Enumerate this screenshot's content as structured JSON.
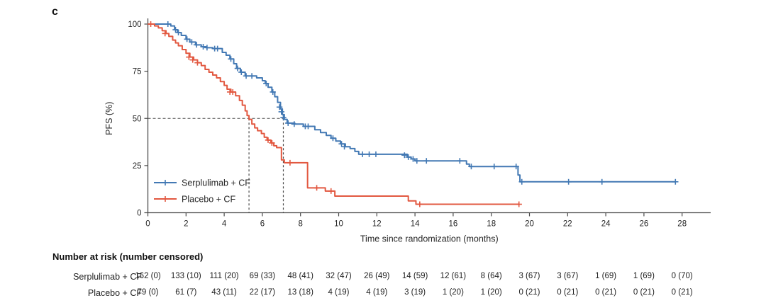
{
  "panel_label": "c",
  "colors": {
    "serplulimab": "#4379B4",
    "placebo": "#E25840",
    "axis": "#4a4a4a",
    "dashed": "#4d4d4d",
    "text": "#262626"
  },
  "chart_data": {
    "type": "line",
    "subtype": "kaplan-meier-step",
    "title": "",
    "xlabel": "Time since randomization (months)",
    "ylabel": "PFS (%)",
    "xlim": [
      0,
      29.5
    ],
    "ylim": [
      0,
      100
    ],
    "xticks": [
      0,
      2,
      4,
      6,
      8,
      10,
      12,
      14,
      16,
      18,
      20,
      22,
      24,
      26,
      28
    ],
    "yticks": [
      0,
      25,
      50,
      75,
      100
    ],
    "grid": false,
    "legend_position": "lower-left-inside",
    "reference_lines": {
      "horizontal_pfs_pct": 50,
      "vertical_median_months": [
        5.3,
        7.1
      ],
      "median_months_placebo": 5.3,
      "median_months_serplulimab": 7.1
    },
    "series": [
      {
        "name": "Serplulimab + CF",
        "color": "#4379B4",
        "steps": [
          [
            0,
            100
          ],
          [
            1.2,
            99
          ],
          [
            1.4,
            97
          ],
          [
            1.55,
            95.5
          ],
          [
            1.75,
            94
          ],
          [
            2.0,
            92
          ],
          [
            2.2,
            90.5
          ],
          [
            2.5,
            89
          ],
          [
            2.8,
            88
          ],
          [
            3.05,
            87.5
          ],
          [
            3.4,
            87
          ],
          [
            3.9,
            85
          ],
          [
            4.1,
            83.5
          ],
          [
            4.3,
            81.5
          ],
          [
            4.5,
            79
          ],
          [
            4.65,
            76.5
          ],
          [
            4.85,
            74.5
          ],
          [
            5.1,
            72.5
          ],
          [
            5.7,
            71.5
          ],
          [
            6.0,
            70
          ],
          [
            6.15,
            68.5
          ],
          [
            6.3,
            66.5
          ],
          [
            6.5,
            64
          ],
          [
            6.65,
            61.5
          ],
          [
            6.8,
            58.5
          ],
          [
            6.95,
            55
          ],
          [
            7.05,
            52
          ],
          [
            7.15,
            49.5
          ],
          [
            7.3,
            47.5
          ],
          [
            7.7,
            47
          ],
          [
            8.15,
            45.8
          ],
          [
            8.75,
            44
          ],
          [
            9.05,
            42.5
          ],
          [
            9.35,
            41
          ],
          [
            9.6,
            39.5
          ],
          [
            9.85,
            38
          ],
          [
            10.1,
            36.5
          ],
          [
            10.35,
            35
          ],
          [
            10.6,
            34
          ],
          [
            10.85,
            32.5
          ],
          [
            11.05,
            31
          ],
          [
            13.4,
            31
          ],
          [
            13.6,
            29.5
          ],
          [
            13.8,
            28.5
          ],
          [
            14.0,
            27.5
          ],
          [
            16.5,
            27.5
          ],
          [
            16.7,
            25.8
          ],
          [
            16.85,
            24.5
          ],
          [
            19.3,
            24.5
          ],
          [
            19.4,
            20
          ],
          [
            19.5,
            16.4
          ],
          [
            27.65,
            16.4
          ]
        ],
        "censor_marks": [
          [
            1.05,
            100
          ],
          [
            1.45,
            97
          ],
          [
            1.6,
            95.5
          ],
          [
            2.05,
            92
          ],
          [
            2.3,
            90.5
          ],
          [
            2.55,
            89
          ],
          [
            2.9,
            88
          ],
          [
            3.1,
            87.5
          ],
          [
            3.5,
            87
          ],
          [
            3.65,
            87
          ],
          [
            4.35,
            81.5
          ],
          [
            4.7,
            76.5
          ],
          [
            4.9,
            74.5
          ],
          [
            5.15,
            72.5
          ],
          [
            5.45,
            72.5
          ],
          [
            6.2,
            68.5
          ],
          [
            6.55,
            64
          ],
          [
            6.9,
            56
          ],
          [
            7.0,
            53.5
          ],
          [
            7.1,
            50.5
          ],
          [
            7.35,
            47.5
          ],
          [
            7.67,
            47
          ],
          [
            8.25,
            45.8
          ],
          [
            8.4,
            45.8
          ],
          [
            9.7,
            39.5
          ],
          [
            10.15,
            36.5
          ],
          [
            10.3,
            35
          ],
          [
            11.25,
            31
          ],
          [
            11.6,
            31
          ],
          [
            11.95,
            31
          ],
          [
            13.45,
            30.5
          ],
          [
            13.65,
            29.5
          ],
          [
            13.9,
            28.5
          ],
          [
            14.1,
            27.5
          ],
          [
            14.6,
            27.5
          ],
          [
            16.35,
            27.5
          ],
          [
            16.95,
            24.5
          ],
          [
            18.15,
            24.5
          ],
          [
            19.3,
            24.5
          ],
          [
            19.6,
            16.4
          ],
          [
            22.05,
            16.4
          ],
          [
            23.8,
            16.4
          ],
          [
            27.65,
            16.4
          ]
        ]
      },
      {
        "name": "Placebo + CF",
        "color": "#E25840",
        "steps": [
          [
            0,
            100
          ],
          [
            0.35,
            99
          ],
          [
            0.55,
            98
          ],
          [
            0.75,
            96.5
          ],
          [
            0.95,
            95
          ],
          [
            1.1,
            93.5
          ],
          [
            1.3,
            91.5
          ],
          [
            1.45,
            90
          ],
          [
            1.6,
            88.5
          ],
          [
            1.8,
            86.5
          ],
          [
            2.0,
            84.5
          ],
          [
            2.2,
            82.5
          ],
          [
            2.4,
            81
          ],
          [
            2.6,
            79.5
          ],
          [
            2.8,
            78
          ],
          [
            3.0,
            76
          ],
          [
            3.2,
            74.5
          ],
          [
            3.4,
            73
          ],
          [
            3.6,
            71.5
          ],
          [
            3.8,
            69.5
          ],
          [
            4.0,
            67.5
          ],
          [
            4.15,
            65.5
          ],
          [
            4.35,
            64
          ],
          [
            4.6,
            62
          ],
          [
            4.8,
            59.5
          ],
          [
            4.95,
            57
          ],
          [
            5.1,
            54
          ],
          [
            5.2,
            51.5
          ],
          [
            5.3,
            49.5
          ],
          [
            5.45,
            47
          ],
          [
            5.6,
            45
          ],
          [
            5.75,
            43.5
          ],
          [
            5.95,
            42
          ],
          [
            6.1,
            40
          ],
          [
            6.25,
            38.5
          ],
          [
            6.45,
            37
          ],
          [
            6.6,
            35.5
          ],
          [
            6.75,
            34.5
          ],
          [
            7.0,
            28
          ],
          [
            7.15,
            26.5
          ],
          [
            8.3,
            26.5
          ],
          [
            8.37,
            13.2
          ],
          [
            9.3,
            11.5
          ],
          [
            9.8,
            8.8
          ],
          [
            13.65,
            6.3
          ],
          [
            14.05,
            4.5
          ],
          [
            19.45,
            4.5
          ]
        ],
        "censor_marks": [
          [
            0.15,
            100
          ],
          [
            0.9,
            95
          ],
          [
            2.15,
            82.5
          ],
          [
            2.35,
            81
          ],
          [
            2.6,
            79.5
          ],
          [
            4.3,
            64
          ],
          [
            4.45,
            64
          ],
          [
            6.3,
            38.5
          ],
          [
            6.5,
            37
          ],
          [
            7.45,
            26.5
          ],
          [
            8.85,
            13.2
          ],
          [
            9.6,
            11.5
          ],
          [
            14.25,
            4.5
          ],
          [
            19.45,
            4.5
          ]
        ]
      }
    ]
  },
  "legend": {
    "items": [
      {
        "label": "Serplulimab + CF",
        "color": "#4379B4"
      },
      {
        "label": "Placebo + CF",
        "color": "#E25840"
      }
    ]
  },
  "risk_table": {
    "title": "Number at risk (number censored)",
    "time_points": [
      0,
      2,
      4,
      6,
      8,
      10,
      12,
      14,
      16,
      18,
      20,
      22,
      24,
      26,
      28
    ],
    "rows": [
      {
        "label": "Serplulimab + CF",
        "values": [
          "162 (0)",
          "133 (10)",
          "111 (20)",
          "69 (33)",
          "48 (41)",
          "32 (47)",
          "26 (49)",
          "14 (59)",
          "12 (61)",
          "8 (64)",
          "3 (67)",
          "3 (67)",
          "1 (69)",
          "1 (69)",
          "0 (70)"
        ]
      },
      {
        "label": "Placebo + CF",
        "values": [
          "79 (0)",
          "61 (7)",
          "43 (11)",
          "22 (17)",
          "13 (18)",
          "4 (19)",
          "4 (19)",
          "3 (19)",
          "1 (20)",
          "1 (20)",
          "0 (21)",
          "0 (21)",
          "0 (21)",
          "0 (21)",
          "0 (21)"
        ]
      }
    ]
  }
}
